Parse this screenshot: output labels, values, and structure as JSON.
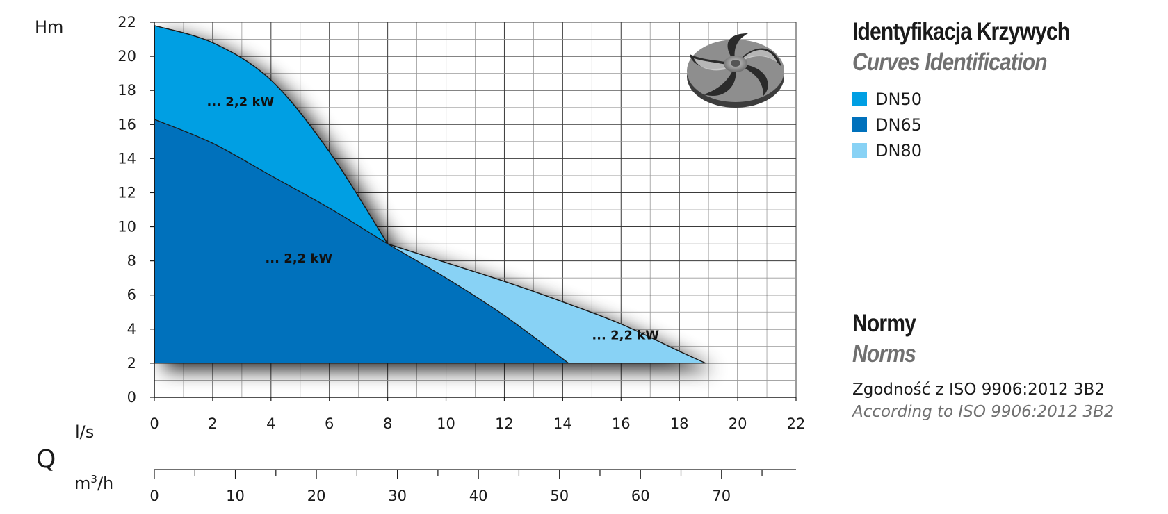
{
  "chart_data": {
    "type": "area",
    "y_axis": {
      "label": "Hm",
      "ticks": [
        0,
        2,
        4,
        6,
        8,
        10,
        12,
        14,
        16,
        18,
        20,
        22
      ],
      "ylim": [
        0,
        22
      ]
    },
    "x_axis": {
      "label": "l/s",
      "ticks": [
        0,
        2,
        4,
        6,
        8,
        10,
        12,
        14,
        16,
        18,
        20,
        22
      ],
      "xlim": [
        0,
        22
      ]
    },
    "secondary_x_axis": {
      "label_base": "m",
      "label_sup": "3",
      "label_tail": "/h",
      "ticks": [
        0,
        10,
        20,
        30,
        40,
        50,
        60,
        70
      ],
      "per_ls": 3.6
    },
    "q_label": "Q",
    "grid": true,
    "series": [
      {
        "name": "DN50",
        "color": "#009fe3",
        "power_label": "... 2,2 kW",
        "label_at": [
          1.8,
          17.1
        ],
        "points": [
          [
            0,
            21.8
          ],
          [
            2,
            20.8
          ],
          [
            4,
            18.6
          ],
          [
            6,
            14.4
          ],
          [
            8,
            9.0
          ]
        ]
      },
      {
        "name": "DN65",
        "color": "#0071bc",
        "power_label": "... 2,2 kW",
        "label_at": [
          3.8,
          7.9
        ],
        "points": [
          [
            0,
            16.3
          ],
          [
            2,
            14.9
          ],
          [
            4,
            13.0
          ],
          [
            6,
            11.1
          ],
          [
            8,
            9.0
          ],
          [
            10,
            7.0
          ],
          [
            12,
            4.8
          ],
          [
            14.2,
            2.0
          ]
        ]
      },
      {
        "name": "DN80",
        "color": "#88d2f5",
        "power_label": "... 2,2 kW",
        "label_at": [
          15.0,
          3.4
        ],
        "points": [
          [
            8,
            9.0
          ],
          [
            10,
            7.9
          ],
          [
            12,
            6.8
          ],
          [
            14,
            5.6
          ],
          [
            16,
            4.3
          ],
          [
            18,
            2.7
          ],
          [
            18.9,
            2.0
          ]
        ]
      }
    ],
    "fill_base": 2
  },
  "panel": {
    "curves_title_pl": "Identyfikacja Krzywych",
    "curves_title_en": "Curves Identification",
    "legend": [
      {
        "label": "DN50",
        "color": "#009fe3"
      },
      {
        "label": "DN65",
        "color": "#0071bc"
      },
      {
        "label": "DN80",
        "color": "#88d2f5"
      }
    ],
    "norms_title_pl": "Normy",
    "norms_title_en": "Norms",
    "norm_text_pl": "Zgodność z ISO 9906:2012 3B2",
    "norm_text_en": "According to ISO 9906:2012 3B2"
  },
  "impeller_icon": "impeller-icon"
}
